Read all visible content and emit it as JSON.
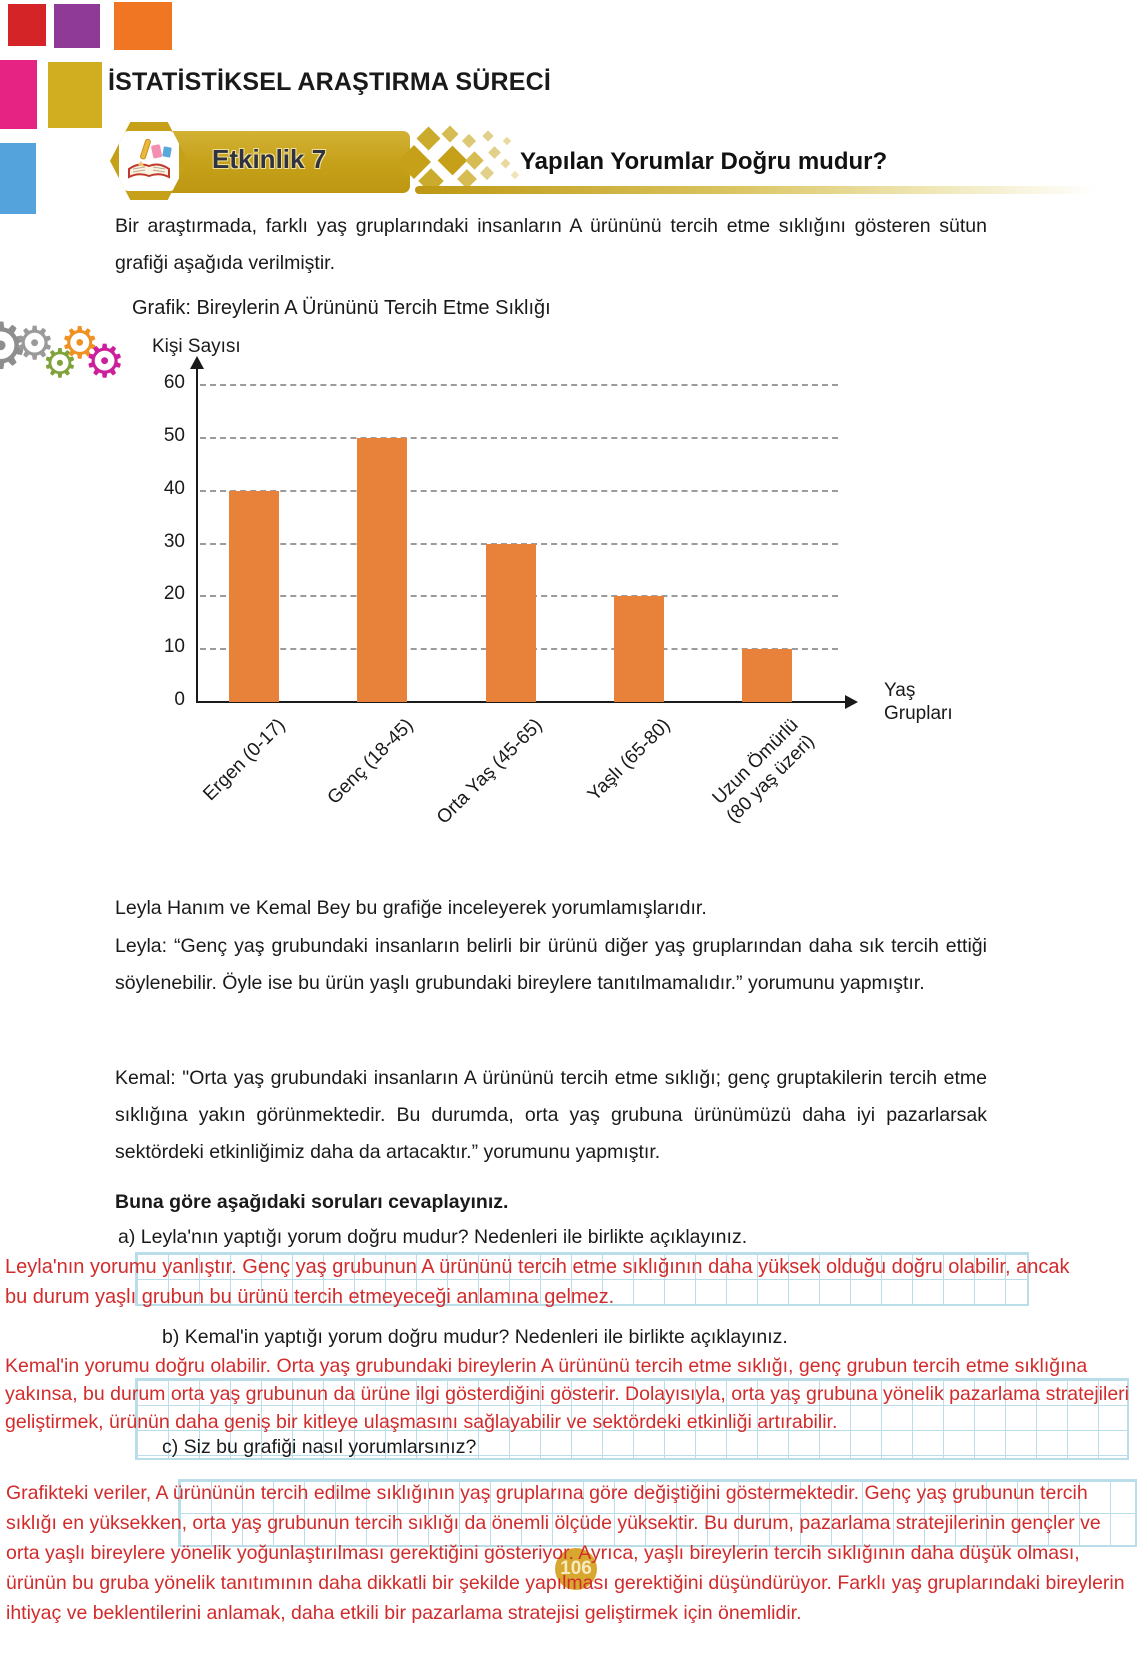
{
  "header": {
    "title": "İSTATİSTİKSEL ARAŞTIRMA SÜRECİ",
    "activity_label": "Etkinlik 7",
    "activity_title": "Yapılan Yorumlar Doğru mudur?",
    "page_number": "106"
  },
  "intro": "Bir araştırmada, farklı yaş gruplarındaki insanların A ürününü tercih etme sıklığını gösteren sütun grafiği aşağıda verilmiştir.",
  "chart_data": {
    "type": "bar",
    "title": "Grafik: Bireylerin A Ürününü Tercih Etme Sıklığı",
    "ylabel": "Kişi Sayısı",
    "xlabel": "Yaş Grupları",
    "categories": [
      "Ergen (0-17)",
      "Genç (18-45)",
      "Orta Yaş (45-65)",
      "Yaşlı (65-80)",
      "Uzun Ömürlü\n(80 yaş üzeri)"
    ],
    "values": [
      40,
      50,
      30,
      20,
      10
    ],
    "ylim": [
      0,
      60
    ],
    "yticks": [
      0,
      10,
      20,
      30,
      40,
      50,
      60
    ],
    "grid": "horizontal-dashed",
    "legend": "none",
    "bar_color": "#e8823b"
  },
  "paragraphs": {
    "lead": "Leyla Hanım ve Kemal Bey bu grafiğe inceleyerek yorumlamışlarıdır.",
    "leyla": "Leyla: “Genç yaş grubundaki insanların belirli bir ürünü diğer yaş gruplarından daha sık tercih ettiği söylenebilir. Öyle ise bu ürün yaşlı grubundaki bireylere tanıtılmamalıdır.” yorumunu yapmıştır.",
    "kemal": "Kemal: \"Orta yaş grubundaki insanların A ürününü tercih etme sıklığı; genç gruptakilerin tercih etme sıklığına yakın görünmektedir. Bu durumda, orta yaş grubuna ürünümüzü daha iyi pazarlarsak sektördeki etkinliğimiz daha da artacaktır.” yorumunu yapmıştır.",
    "instruction": "Buna göre aşağıdaki soruları cevaplayınız."
  },
  "questions": {
    "a": "a) Leyla'nın yaptığı yorum doğru mudur? Nedenleri ile birlikte açıklayınız.",
    "a_answer": "Leyla'nın yorumu yanlıştır. Genç yaş grubunun A ürününü tercih etme sıklığının daha yüksek olduğu doğru olabilir, ancak bu durum yaşlı grubun bu ürünü tercih etmeyeceği anlamına gelmez.",
    "b": "b) Kemal'in yaptığı yorum doğru mudur? Nedenleri ile birlikte açıklayınız.",
    "b_answer": "Kemal'in yorumu doğru olabilir. Orta yaş grubundaki bireylerin A ürününü tercih etme sıklığı, genç grubun tercih etme sıklığına yakınsa, bu durum orta yaş grubunun da ürüne ilgi gösterdiğini gösterir. Dolayısıyla, orta yaş grubuna yönelik pazarlama stratejileri geliştirmek, ürünün daha geniş bir kitleye ulaşmasını sağlayabilir ve sektördeki etkinliği artırabilir.",
    "c": "c) Siz bu grafiği nasıl yorumlarsınız?",
    "c_answer": "Grafikteki veriler, A ürününün tercih edilme sıklığının yaş gruplarına göre değiştiğini göstermektedir. Genç yaş grubunun tercih sıklığı en yüksekken, orta yaş grubunun tercih sıklığı da önemli ölçüde yüksektir. Bu durum, pazarlama stratejilerinin gençler ve orta yaşlı bireylere yönelik yoğunlaştırılması gerektiğini gösteriyor. Ayrıca, yaşlı bireylerin tercih sıklığının daha düşük olması, ürünün bu gruba yönelik tanıtımının daha dikkatli bir şekilde yapılması gerektiğini düşündürüyor. Farklı yaş gruplarındaki bireylerin ihtiyaç ve beklentilerini anlamak, daha etkili bir pazarlama stratejisi geliştirmek için önemlidir."
  },
  "colors": {
    "bar_orange": "#e8823b",
    "badge_gold": "#c5a018",
    "answer_red": "#d22b2b",
    "answer_grid_blue": "#b9dee9",
    "page_badge_gold": "#d7a72f",
    "square_red": "#d42427",
    "square_purple": "#8f3a96",
    "square_orange": "#f07623",
    "square_pink": "#e62282",
    "square_gold": "#d1ae1f",
    "square_blue": "#55a3dc"
  }
}
